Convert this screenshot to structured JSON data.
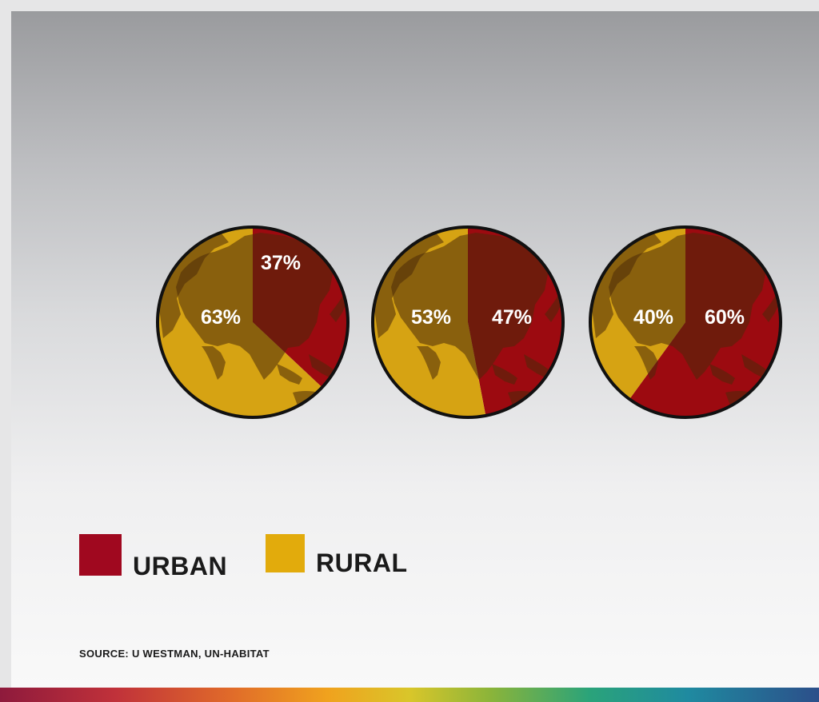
{
  "chart_data": [
    {
      "type": "pie",
      "slices": [
        {
          "name": "URBAN",
          "value": 37,
          "label": "37%"
        },
        {
          "name": "RURAL",
          "value": 63,
          "label": "63%"
        }
      ]
    },
    {
      "type": "pie",
      "slices": [
        {
          "name": "URBAN",
          "value": 47,
          "label": "47%"
        },
        {
          "name": "RURAL",
          "value": 53,
          "label": "53%"
        }
      ]
    },
    {
      "type": "pie",
      "slices": [
        {
          "name": "URBAN",
          "value": 60,
          "label": "60%"
        },
        {
          "name": "RURAL",
          "value": 40,
          "label": "40%"
        }
      ]
    }
  ],
  "legend": {
    "placement": "bottom-left",
    "items": [
      {
        "label": "URBAN",
        "color": "#a0081f"
      },
      {
        "label": "RURAL",
        "color": "#e2ab0c"
      }
    ]
  },
  "colors": {
    "urban_slice": "#9c0a10",
    "rural_slice": "#d6a313",
    "land_tint": "#4a2a0a",
    "outline": "#111111"
  },
  "source": "SOURCE: U WESTMAN, UN-HABITAT"
}
